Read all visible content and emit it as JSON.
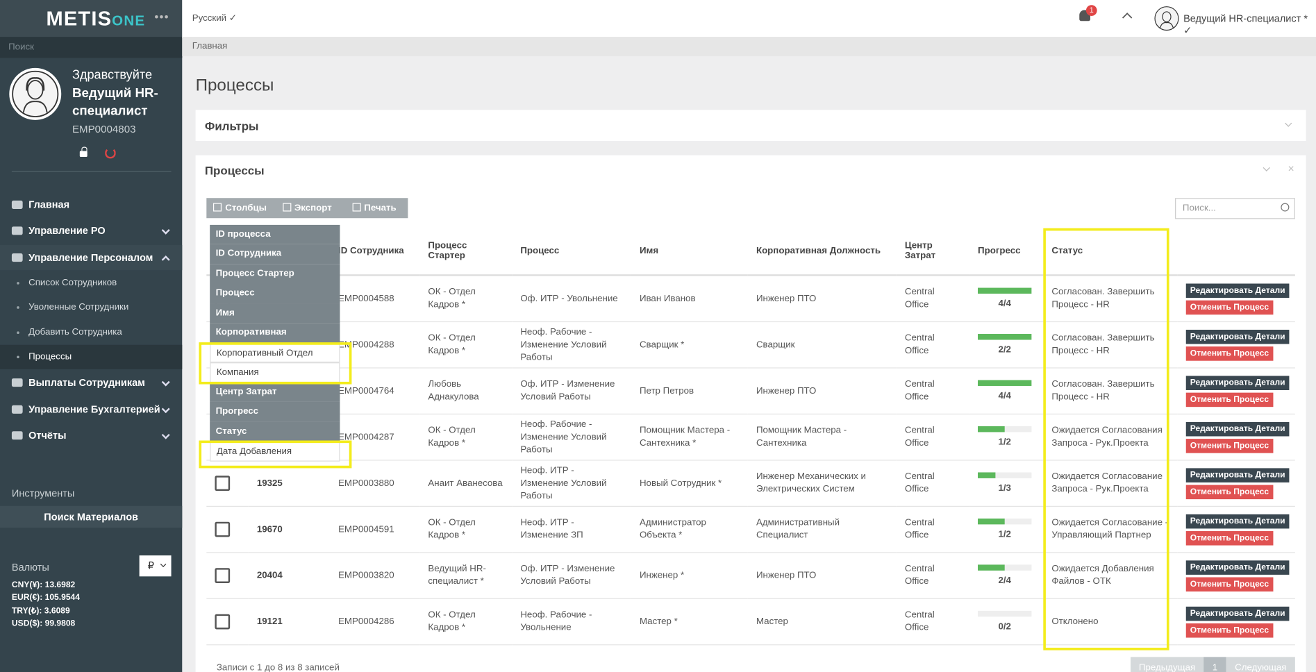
{
  "sidebar": {
    "logo": "METIS",
    "logo_suffix": "ONE",
    "search_placeholder": "Поиск",
    "greeting": "Здравствуйте",
    "user_name": "Ведущий HR-специалист",
    "employee_id": "EMP0004803",
    "menu": [
      {
        "label": "Главная"
      },
      {
        "label": "Управление РО"
      },
      {
        "label": "Управление Персоналом",
        "children": [
          "Список Сотрудников",
          "Уволенные Сотрудники",
          "Добавить Сотрудника",
          "Процессы"
        ]
      },
      {
        "label": "Выплаты Сотрудникам"
      },
      {
        "label": "Управление Бухгалтерией"
      },
      {
        "label": "Отчёты"
      }
    ],
    "tools_title": "Инструменты",
    "tools_button": "Поиск Материалов",
    "currencies_title": "Валюты",
    "currency_select": "₽",
    "rates": [
      "CNY(¥): 13.6982",
      "EUR(€): 105.9544",
      "TRY(₺): 3.6089",
      "USD($): 99.9808"
    ]
  },
  "topbar": {
    "language": "Русский",
    "notification_count": "1",
    "user": "Ведущий HR-специалист *"
  },
  "breadcrumb": "Главная",
  "page_title": "Процессы",
  "filters_title": "Фильтры",
  "panel": {
    "title": "Процессы",
    "toolbar": [
      "Столбцы",
      "Экспорт",
      "Печать"
    ],
    "search_placeholder": "Поиск...",
    "column_menu": [
      {
        "label": "ID процесса",
        "visible": true
      },
      {
        "label": "ID Сотрудника",
        "visible": true
      },
      {
        "label": "Процесс Стартер",
        "visible": true
      },
      {
        "label": "Процесс",
        "visible": true
      },
      {
        "label": "Имя",
        "visible": true
      },
      {
        "label": "Корпоративная Должность",
        "visible": true
      },
      {
        "label": "Корпоративный Отдел",
        "visible": false
      },
      {
        "label": "Компания",
        "visible": false
      },
      {
        "label": "Центр Затрат",
        "visible": true
      },
      {
        "label": "Прогресс",
        "visible": true
      },
      {
        "label": "Статус",
        "visible": true
      },
      {
        "label": "Дата Добавления",
        "visible": false
      }
    ],
    "headers": [
      "ID Сотрудника",
      "Процесс Стартер",
      "Процесс",
      "Имя",
      "Корпоративная Должность",
      "Центр Затрат",
      "Прогресс",
      "Статус"
    ],
    "rows": [
      {
        "id": null,
        "employee": "EMP0004588",
        "starter": "ОК - Отдел Кадров *",
        "process": "Оф. ИТР - Увольнение",
        "name": "Иван Иванов",
        "position": "Инженер ПТО",
        "center": "Central Office",
        "progress": "4/4",
        "status": "Согласован. Завершить Процесс - HR"
      },
      {
        "id": null,
        "employee": "EMP0004288",
        "starter": "ОК - Отдел Кадров *",
        "process": "Неоф. Рабочие - Изменение Условий Работы",
        "name": "Сварщик *",
        "position": "Сварщик",
        "center": "Central Office",
        "progress": "2/2",
        "status": "Согласован. Завершить Процесс - HR"
      },
      {
        "id": null,
        "employee": "EMP0004764",
        "starter": "Любовь Аднакулова",
        "process": "Оф. ИТР - Изменение Условий Работы",
        "name": "Петр Петров",
        "position": "Инженер ПТО",
        "center": "Central Office",
        "progress": "4/4",
        "status": "Согласован. Завершить Процесс - HR"
      },
      {
        "id": null,
        "employee": "EMP0004287",
        "starter": "ОК - Отдел Кадров *",
        "process": "Неоф. Рабочие - Изменение Условий Работы",
        "name": "Помощник Мастера - Сантехника *",
        "position": "Помощник Мастера - Сантехника",
        "center": "Central Office",
        "progress": "1/2",
        "status": "Ожидается Согласования Запроса - Рук.Проекта"
      },
      {
        "id": "19325",
        "employee": "EMP0003880",
        "starter": "Анаит Аванесова",
        "process": "Неоф. ИТР - Изменение Условий Работы",
        "name": "Новый Сотрудник *",
        "position": "Инженер Механических и Электрических Систем",
        "center": "Central Office",
        "progress": "1/3",
        "status": "Ожидается Согласование Запроса - Рук.Проекта"
      },
      {
        "id": "19670",
        "employee": "EMP0004591",
        "starter": "ОК - Отдел Кадров *",
        "process": "Неоф. ИТР - Изменение ЗП",
        "name": "Администратор Объекта *",
        "position": "Административный Специалист",
        "center": "Central Office",
        "progress": "1/2",
        "status": "Ожидается Согласование - Управляющий Партнер"
      },
      {
        "id": "20404",
        "employee": "EMP0003820",
        "starter": "Ведущий HR-специалист *",
        "process": "Оф. ИТР - Изменение Условий Работы",
        "name": "Инженер *",
        "position": "Инженер ПТО",
        "center": "Central Office",
        "progress": "2/4",
        "status": "Ожидается Добавления Файлов - ОТК"
      },
      {
        "id": "19121",
        "employee": "EMP0004286",
        "starter": "ОК - Отдел Кадров *",
        "process": "Неоф. Рабочие - Увольнение",
        "name": "Мастер *",
        "position": "Мастер",
        "center": "Central Office",
        "progress": "0/2",
        "status": "Отклонено"
      }
    ],
    "actions": [
      "Редактировать Детали",
      "Отменить Процесс"
    ],
    "footer": "Записи с 1 до 8 из 8 записей",
    "pagination": [
      "Предыдущая",
      "1",
      "Следующая"
    ]
  }
}
